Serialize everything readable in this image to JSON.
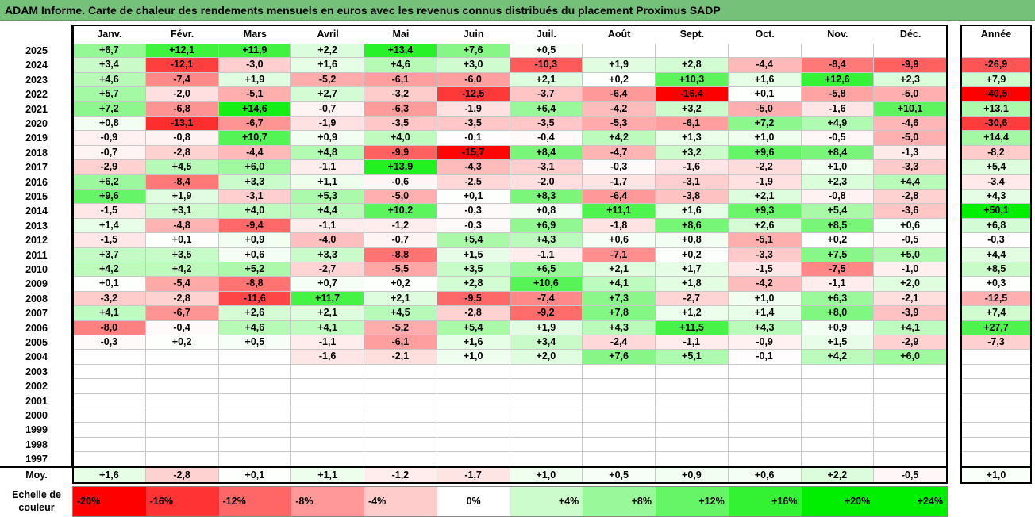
{
  "title": "ADAM Informe. Carte de chaleur des rendements mensuels en euros avec les revenus connus distribués du placement Proximus SADP",
  "chart_data": {
    "type": "heatmap",
    "columns": [
      "Janv.",
      "Févr.",
      "Mars",
      "Avril",
      "Mai",
      "Juin",
      "Juil.",
      "Août",
      "Sept.",
      "Oct.",
      "Nov.",
      "Déc."
    ],
    "year_column": "Année",
    "rows": [
      {
        "year": "2025",
        "months": [
          "+6,7",
          "+12,1",
          "+11,9",
          "+2,2",
          "+13,4",
          "+7,6",
          "+0,5",
          "",
          "",
          "",
          "",
          ""
        ],
        "annual": ""
      },
      {
        "year": "2024",
        "months": [
          "+3,4",
          "-12,1",
          "-3,0",
          "+1,6",
          "+4,6",
          "+3,0",
          "-10,3",
          "+1,9",
          "+2,8",
          "-4,4",
          "-8,4",
          "-9,9"
        ],
        "annual": "-26,9"
      },
      {
        "year": "2023",
        "months": [
          "+4,6",
          "-7,4",
          "+1,9",
          "-5,2",
          "-6,1",
          "-6,0",
          "+2,1",
          "+0,2",
          "+10,3",
          "+1,6",
          "+12,6",
          "+2,3"
        ],
        "annual": "+7,9"
      },
      {
        "year": "2022",
        "months": [
          "+5,7",
          "-2,0",
          "-5,1",
          "+2,7",
          "-3,2",
          "-12,5",
          "-3,7",
          "-6,4",
          "-16,4",
          "+0,1",
          "-5,8",
          "-5,0"
        ],
        "annual": "-40,5"
      },
      {
        "year": "2021",
        "months": [
          "+7,2",
          "-6,8",
          "+14,6",
          "-0,7",
          "-6,3",
          "-1,9",
          "+6,4",
          "-4,2",
          "+3,2",
          "-5,0",
          "-1,6",
          "+10,1"
        ],
        "annual": "+13,1"
      },
      {
        "year": "2020",
        "months": [
          "+0,8",
          "-13,1",
          "-6,7",
          "-1,9",
          "-3,5",
          "-3,5",
          "-3,5",
          "-5,3",
          "-6,1",
          "+7,2",
          "+4,9",
          "-4,6"
        ],
        "annual": "-30,6"
      },
      {
        "year": "2019",
        "months": [
          "-0,9",
          "-0,8",
          "+10,7",
          "+0,9",
          "+4,0",
          "-0,1",
          "-0,4",
          "+4,2",
          "+1,3",
          "+1,0",
          "-0,5",
          "-5,0"
        ],
        "annual": "+14,4"
      },
      {
        "year": "2018",
        "months": [
          "-0,7",
          "-2,8",
          "-4,4",
          "+4,8",
          "-9,9",
          "-15,7",
          "+8,4",
          "-4,7",
          "+3,2",
          "+9,6",
          "+8,4",
          "-1,3"
        ],
        "annual": "-8,2"
      },
      {
        "year": "2017",
        "months": [
          "-2,9",
          "+4,5",
          "+6,0",
          "-1,1",
          "+13,9",
          "-4,3",
          "-3,1",
          "-0,3",
          "-1,6",
          "-2,2",
          "+1,0",
          "-3,3"
        ],
        "annual": "+5,4"
      },
      {
        "year": "2016",
        "months": [
          "+6,2",
          "-8,4",
          "+3,3",
          "+1,1",
          "-0,6",
          "-2,5",
          "-2,0",
          "-1,7",
          "-3,1",
          "-1,9",
          "+2,3",
          "+4,4"
        ],
        "annual": "-3,4"
      },
      {
        "year": "2015",
        "months": [
          "+9,6",
          "+1,9",
          "-3,1",
          "+5,3",
          "-5,0",
          "+0,1",
          "+8,3",
          "-6,4",
          "-3,8",
          "+2,1",
          "-0,8",
          "-2,8"
        ],
        "annual": "+4,3"
      },
      {
        "year": "2014",
        "months": [
          "-1,5",
          "+3,1",
          "+4,0",
          "+4,4",
          "+10,2",
          "-0,3",
          "+0,8",
          "+11,1",
          "+1,6",
          "+9,3",
          "+5,4",
          "-3,6"
        ],
        "annual": "+50,1"
      },
      {
        "year": "2013",
        "months": [
          "+1,4",
          "-4,8",
          "-9,4",
          "-1,1",
          "-1,2",
          "-0,3",
          "+6,9",
          "-1,8",
          "+8,6",
          "+2,6",
          "+8,5",
          "+0,6"
        ],
        "annual": "+6,8"
      },
      {
        "year": "2012",
        "months": [
          "-1,5",
          "+0,1",
          "+0,9",
          "-4,0",
          "-0,7",
          "+5,4",
          "+4,3",
          "+0,6",
          "+0,8",
          "-5,1",
          "+0,2",
          "-0,5"
        ],
        "annual": "-0,3"
      },
      {
        "year": "2011",
        "months": [
          "+3,7",
          "+3,5",
          "+0,6",
          "+3,3",
          "-8,8",
          "+1,5",
          "-1,1",
          "-7,1",
          "+0,2",
          "-3,3",
          "+7,5",
          "+5,0"
        ],
        "annual": "+4,4"
      },
      {
        "year": "2010",
        "months": [
          "+4,2",
          "+4,2",
          "+5,2",
          "-2,7",
          "-5,5",
          "+3,5",
          "+6,5",
          "+2,1",
          "+1,7",
          "-1,5",
          "-7,5",
          "-1,0"
        ],
        "annual": "+8,5"
      },
      {
        "year": "2009",
        "months": [
          "+0,1",
          "-5,4",
          "-8,8",
          "+0,7",
          "+0,2",
          "+2,8",
          "+10,6",
          "+4,1",
          "+1,8",
          "-4,2",
          "-1,1",
          "+2,0"
        ],
        "annual": "+0,3"
      },
      {
        "year": "2008",
        "months": [
          "-3,2",
          "-2,8",
          "-11,6",
          "+11,7",
          "+2,1",
          "-9,5",
          "-7,4",
          "+7,3",
          "-2,7",
          "+1,0",
          "+6,3",
          "-2,1"
        ],
        "annual": "-12,5"
      },
      {
        "year": "2007",
        "months": [
          "+4,1",
          "-6,7",
          "+2,6",
          "+2,1",
          "+4,5",
          "-2,8",
          "-9,2",
          "+7,8",
          "+1,2",
          "+1,4",
          "+8,0",
          "-3,9"
        ],
        "annual": "+7,4"
      },
      {
        "year": "2006",
        "months": [
          "-8,0",
          "-0,4",
          "+4,6",
          "+4,1",
          "-5,2",
          "+5,4",
          "+1,9",
          "+4,3",
          "+11,5",
          "+4,3",
          "+0,9",
          "+4,1"
        ],
        "annual": "+27,7"
      },
      {
        "year": "2005",
        "months": [
          "-0,3",
          "+0,2",
          "+0,5",
          "-1,1",
          "-6,1",
          "+1,6",
          "+3,4",
          "-2,4",
          "-1,1",
          "-0,9",
          "+1,5",
          "-2,9"
        ],
        "annual": "-7,3"
      },
      {
        "year": "2004",
        "months": [
          "",
          "",
          "",
          "-1,6",
          "-2,1",
          "+1,0",
          "+2,0",
          "+7,6",
          "+5,1",
          "-0,1",
          "+4,2",
          "+6,0"
        ],
        "annual": ""
      },
      {
        "year": "2003",
        "months": [
          "",
          "",
          "",
          "",
          "",
          "",
          "",
          "",
          "",
          "",
          "",
          ""
        ],
        "annual": ""
      },
      {
        "year": "2002",
        "months": [
          "",
          "",
          "",
          "",
          "",
          "",
          "",
          "",
          "",
          "",
          "",
          ""
        ],
        "annual": ""
      },
      {
        "year": "2001",
        "months": [
          "",
          "",
          "",
          "",
          "",
          "",
          "",
          "",
          "",
          "",
          "",
          ""
        ],
        "annual": ""
      },
      {
        "year": "2000",
        "months": [
          "",
          "",
          "",
          "",
          "",
          "",
          "",
          "",
          "",
          "",
          "",
          ""
        ],
        "annual": ""
      },
      {
        "year": "1999",
        "months": [
          "",
          "",
          "",
          "",
          "",
          "",
          "",
          "",
          "",
          "",
          "",
          ""
        ],
        "annual": ""
      },
      {
        "year": "1998",
        "months": [
          "",
          "",
          "",
          "",
          "",
          "",
          "",
          "",
          "",
          "",
          "",
          ""
        ],
        "annual": ""
      },
      {
        "year": "1997",
        "months": [
          "",
          "",
          "",
          "",
          "",
          "",
          "",
          "",
          "",
          "",
          "",
          ""
        ],
        "annual": ""
      }
    ],
    "average": {
      "label": "Moy.",
      "months": [
        "+1,6",
        "-2,8",
        "+0,1",
        "+1,1",
        "-1,2",
        "-1,7",
        "+1,0",
        "+0,5",
        "+0,9",
        "+0,6",
        "+2,2",
        "-0,5"
      ],
      "annual": "+1,0"
    },
    "scale": {
      "label": "Echelle de couleur",
      "steps": [
        "-20%",
        "-16%",
        "-12%",
        "-8%",
        "-4%",
        "0%",
        "+4%",
        "+8%",
        "+12%",
        "+16%",
        "+20%",
        "+24%"
      ]
    },
    "colors": {
      "negative_max": "#ff0000",
      "neutral": "#ffffff",
      "positive_max": "#00ee00",
      "title_bar": "#76c17a"
    }
  }
}
